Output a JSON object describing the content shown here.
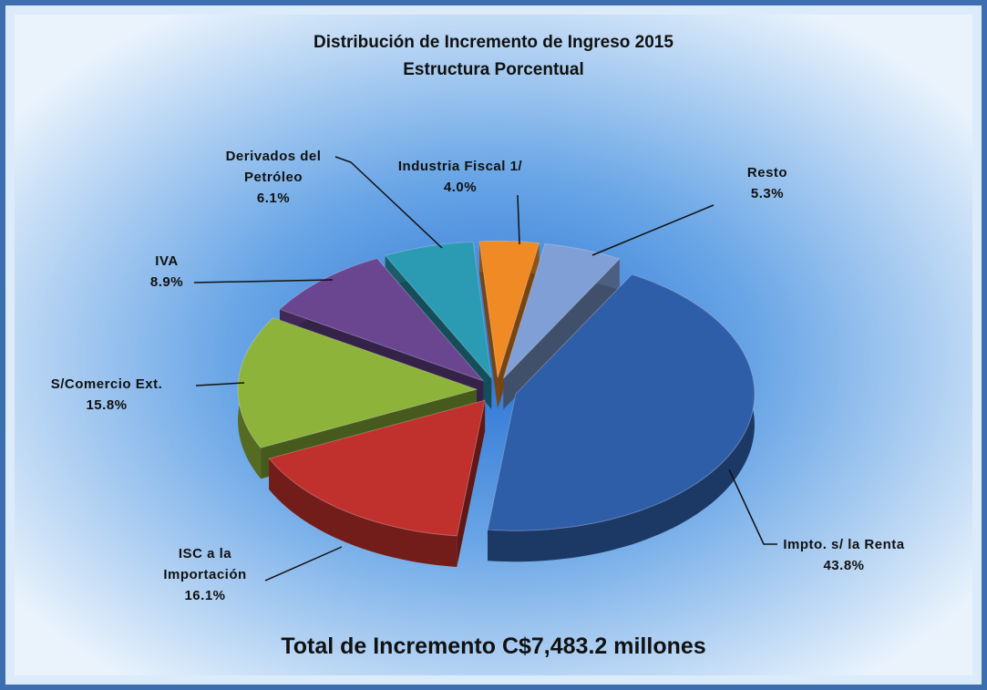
{
  "chart_data": {
    "type": "pie3d",
    "title": "Distribución de Incremento de Ingreso 2015",
    "subtitle": "Estructura Porcentual",
    "categories": [
      "Resto",
      "Impto. s/ la Renta",
      "ISC a la Importación",
      "S/Comercio Ext.",
      "IVA",
      "Derivados del Petróleo",
      "Industria Fiscal 1/"
    ],
    "values": [
      5.3,
      43.8,
      16.1,
      15.8,
      8.9,
      6.1,
      4.0
    ],
    "value_labels": [
      "5.3%",
      "43.8%",
      "16.1%",
      "15.8%",
      "8.9%",
      "6.1%",
      "4.0%"
    ],
    "colors": [
      "#7f9fd6",
      "#2f5ea8",
      "#c0302c",
      "#8db33a",
      "#6a4590",
      "#2a9bb3",
      "#f08a24"
    ],
    "annotation": "Total de Incremento C$7,483.2 millones"
  }
}
